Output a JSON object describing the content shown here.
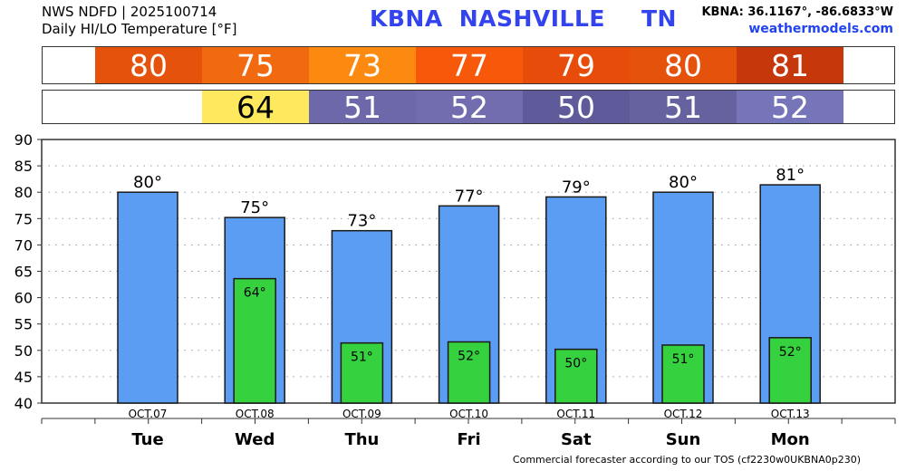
{
  "header": {
    "line1": "NWS NDFD | 2025100714",
    "line2": "Daily HI/LO Temperature [°F]",
    "station": "KBNA",
    "city": "NASHVILLE",
    "state": "TN",
    "coords": "KBNA: 36.1167°, -86.6833°W",
    "site": "weathermodels.com"
  },
  "footer": "Commercial forecaster according to our TOS (cf2230w0UKBNA0p230)",
  "colors": {
    "high_bar": "#5b9df2",
    "low_bar": "#36d13e",
    "hi_cells": [
      "#e4520c",
      "#f26a10",
      "#fc8a10",
      "#f7580a",
      "#e84c0a",
      "#e4520c",
      "#c6380c"
    ],
    "lo_cells": [
      "#fde85e",
      "#6c68aa",
      "#716daf",
      "#5f5b9a",
      "#66629f",
      "#7775b9"
    ]
  },
  "hi_strip": [
    "80",
    "75",
    "73",
    "77",
    "79",
    "80",
    "81"
  ],
  "lo_strip": [
    "64",
    "51",
    "52",
    "50",
    "51",
    "52"
  ],
  "chart_data": {
    "type": "bar",
    "categories": [
      "OCT.07",
      "OCT.08",
      "OCT.09",
      "OCT.10",
      "OCT.11",
      "OCT.12",
      "OCT.13"
    ],
    "days": [
      "Tue",
      "Wed",
      "Thu",
      "Fri",
      "Sat",
      "Sun",
      "Mon"
    ],
    "series": [
      {
        "values": [
          80,
          75.2,
          72.7,
          77.4,
          79.1,
          80,
          81.4
        ],
        "labels": [
          "80°",
          "75°",
          "73°",
          "77°",
          "79°",
          "80°",
          "81°"
        ]
      },
      {
        "values": [
          null,
          63.6,
          51.4,
          51.6,
          50.2,
          51,
          52.4
        ],
        "labels": [
          "",
          "64°",
          "51°",
          "52°",
          "50°",
          "51°",
          "52°"
        ]
      }
    ],
    "ylim": [
      40,
      90
    ],
    "yticks": [
      "40",
      "45",
      "50",
      "55",
      "60",
      "65",
      "70",
      "75",
      "80",
      "85",
      "90"
    ],
    "grid": true
  }
}
